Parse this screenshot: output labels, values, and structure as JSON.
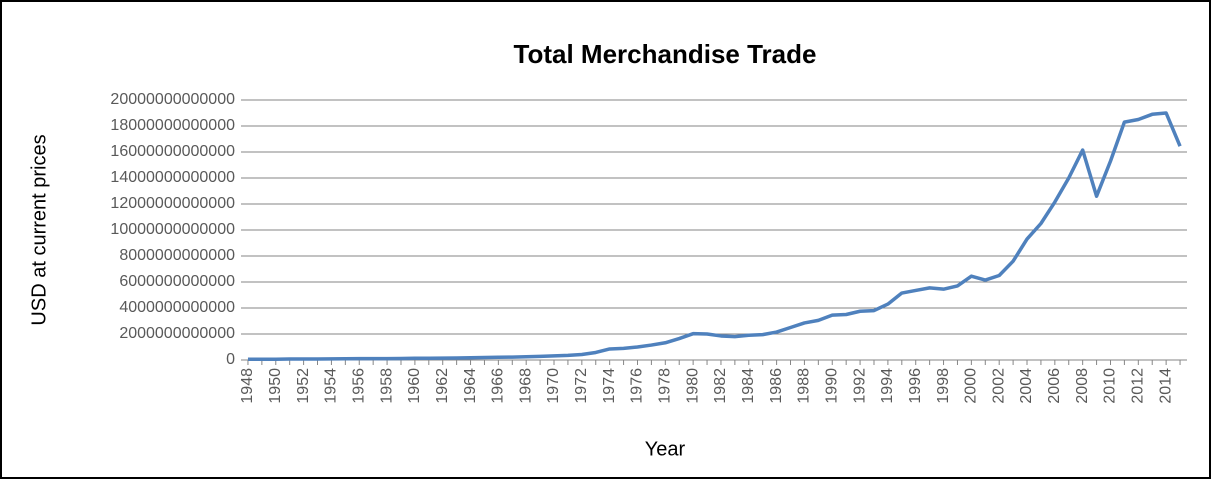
{
  "chart_data": {
    "type": "line",
    "title": "Total Merchandise Trade",
    "xlabel": "Year",
    "ylabel": "USD at current prices",
    "categories": [
      "1948",
      null,
      "1950",
      null,
      "1952",
      null,
      "1954",
      null,
      "1956",
      null,
      "1958",
      null,
      "1960",
      null,
      "1962",
      null,
      "1964",
      null,
      "1966",
      null,
      "1968",
      null,
      "1970",
      null,
      "1972",
      null,
      "1974",
      null,
      "1976",
      null,
      "1978",
      null,
      "1980",
      null,
      "1982",
      null,
      "1984",
      null,
      "1986",
      null,
      "1988",
      null,
      "1990",
      null,
      "1992",
      null,
      "1994",
      null,
      "1996",
      null,
      "1998",
      null,
      "2000",
      null,
      "2002",
      null,
      "2004",
      null,
      "2006",
      null,
      "2008",
      null,
      "2010",
      null,
      "2012",
      null,
      "2014",
      null
    ],
    "series": [
      {
        "name": "Total Merchandise Trade",
        "color": "#4f81bd",
        "values": [
          60000000000.0,
          60000000000.0,
          60000000000.0,
          80000000000.0,
          80000000000.0,
          80000000000.0,
          85000000000.0,
          95000000000.0,
          105000000000.0,
          110000000000.0,
          110000000000.0,
          115000000000.0,
          130000000000.0,
          135000000000.0,
          140000000000.0,
          155000000000.0,
          175000000000.0,
          190000000000.0,
          210000000000.0,
          220000000000.0,
          245000000000.0,
          280000000000.0,
          320000000000.0,
          355000000000.0,
          425000000000.0,
          580000000000.0,
          850000000000.0,
          895000000000.0,
          1000000000000.0,
          1150000000000.0,
          1325000000000.0,
          1650000000000.0,
          2025000000000.0,
          2000000000000.0,
          1850000000000.0,
          1800000000000.0,
          1900000000000.0,
          1950000000000.0,
          2150000000000.0,
          2500000000000.0,
          2850000000000.0,
          3050000000000.0,
          3450000000000.0,
          3500000000000.0,
          3750000000000.0,
          3800000000000.0,
          4300000000000.0,
          5150000000000.0,
          5350000000000.0,
          5550000000000.0,
          5450000000000.0,
          5700000000000.0,
          6450000000000.0,
          6150000000000.0,
          6500000000000.0,
          7600000000000.0,
          9300000000000.0,
          10500000000000.0,
          12150000000000.0,
          14000000000000.0,
          16150000000000.0,
          12600000000000.0,
          15300000000000.0,
          18300000000000.0,
          18500000000000.0,
          18900000000000.0,
          19000000000000.0,
          16450000000000.0
        ]
      }
    ],
    "ylim": [
      0,
      20000000000000
    ],
    "yticks": [
      0,
      2000000000000,
      4000000000000,
      6000000000000,
      8000000000000,
      10000000000000,
      12000000000000,
      14000000000000,
      16000000000000,
      18000000000000,
      20000000000000
    ],
    "grid": true
  }
}
